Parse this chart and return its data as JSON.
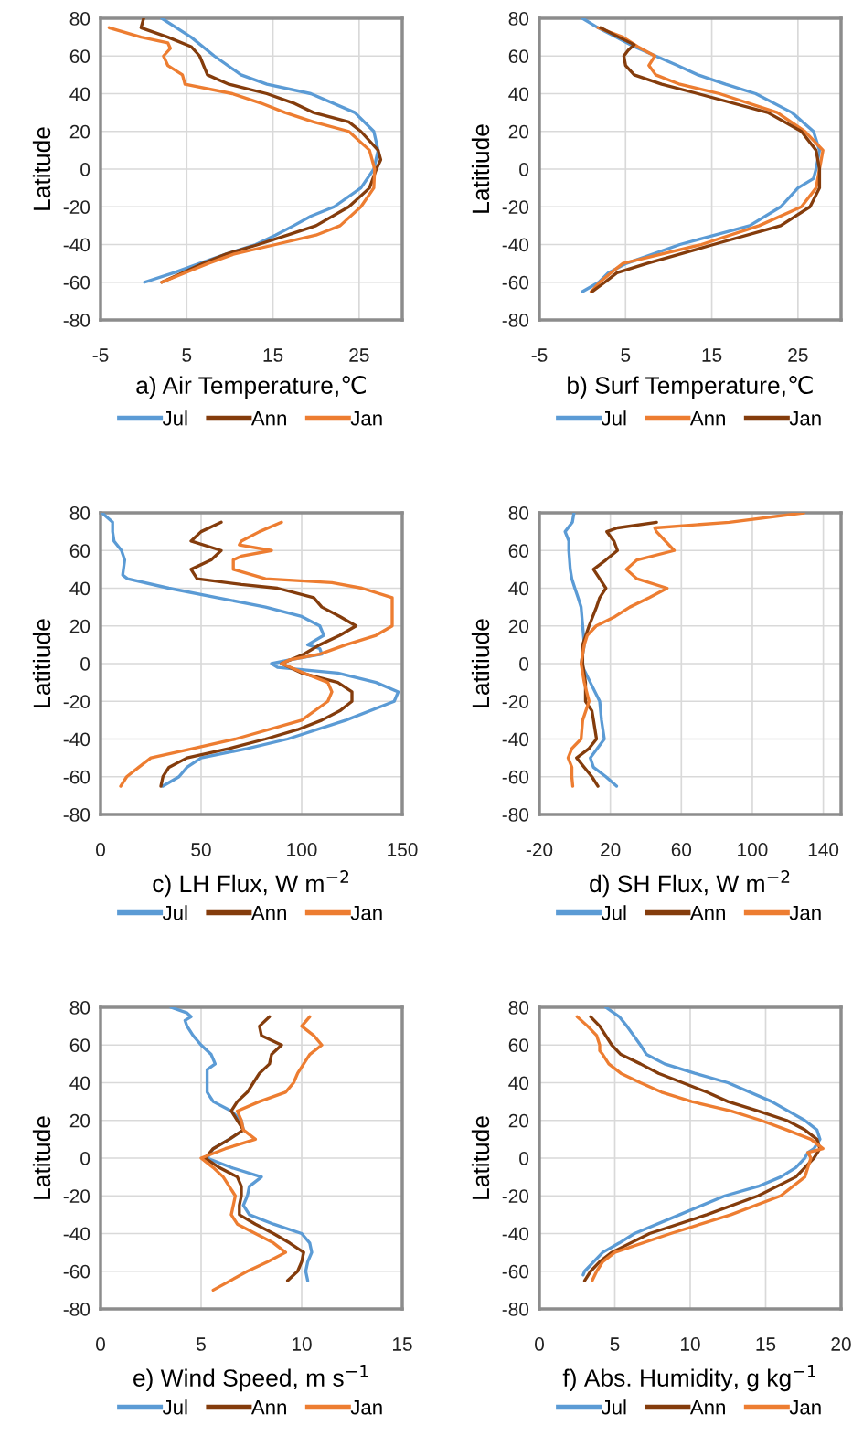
{
  "chart_data": [
    {
      "type": "line",
      "xlabel": "a) Air Temperature,℃",
      "ylabel": "Latitude",
      "xlim": [
        -5,
        30
      ],
      "xticks": [
        -5,
        5,
        15,
        25
      ],
      "ylim": [
        -80,
        80
      ],
      "yticks": [
        -80,
        -60,
        -40,
        -20,
        0,
        20,
        40,
        60,
        80
      ],
      "grid": true,
      "legend": "bottom",
      "series": [
        {
          "name": "Jul",
          "color": "#5b9bd5",
          "x": [
            2.1,
            5.5,
            8.2,
            11.3,
            14.3,
            19.4,
            24.5,
            26.7,
            27.2,
            26.7,
            25.2,
            22.1,
            19.4,
            17.4,
            15.3,
            13,
            9.6,
            6.5,
            3.5,
            0.1
          ],
          "values": [
            80,
            70,
            60,
            50,
            45,
            40,
            30,
            20,
            10,
            0,
            -10,
            -20,
            -25,
            -30,
            -35,
            -40,
            -45,
            -50,
            -55,
            -60
          ]
        },
        {
          "name": "Ann",
          "color": "#843c0c",
          "x": [
            0,
            -0.3,
            2.8,
            5.5,
            6.5,
            7.4,
            9.9,
            14.3,
            17.4,
            19.7,
            23.8,
            25.2,
            27.2,
            27.5,
            27,
            26.2,
            23.8,
            20,
            16.7,
            13.3,
            9.6,
            6.9,
            4.5,
            2.1
          ],
          "values": [
            80,
            75,
            70,
            65,
            60,
            50,
            45,
            40,
            35,
            30,
            25,
            20,
            10,
            5,
            0,
            -10,
            -20,
            -30,
            -35,
            -40,
            -45,
            -50,
            -55,
            -60
          ]
        },
        {
          "name": "Jan",
          "color": "#ed7d31",
          "x": [
            -4,
            -0.3,
            2.8,
            3.1,
            2.3,
            2.8,
            4.5,
            4.8,
            10.3,
            13.6,
            16.4,
            19.7,
            23.8,
            26.2,
            26.8,
            26.7,
            25.2,
            22.8,
            20,
            15.3,
            10.5,
            7.5,
            4.8,
            2.1
          ],
          "values": [
            75,
            70,
            67,
            64,
            60,
            55,
            50,
            45,
            40,
            35,
            30,
            25,
            20,
            10,
            0,
            -10,
            -20,
            -30,
            -35,
            -40,
            -45,
            -50,
            -55,
            -60
          ]
        }
      ]
    },
    {
      "type": "line",
      "xlabel": "b) Surf Temperature,℃",
      "ylabel": "Latitiude",
      "xlim": [
        -5,
        30
      ],
      "xticks": [
        -5,
        5,
        15,
        25
      ],
      "ylim": [
        -80,
        80
      ],
      "yticks": [
        -80,
        -60,
        -40,
        -20,
        0,
        20,
        40,
        60,
        80
      ],
      "grid": true,
      "legend": "bottom",
      "series": [
        {
          "name": "Jul",
          "color": "#5b9bd5",
          "x": [
            0,
            1.8,
            3.9,
            6,
            8.5,
            11,
            13.4,
            16.6,
            20.1,
            24.3,
            26.8,
            27.5,
            27.1,
            26.8,
            25,
            23,
            19.4,
            11.3,
            5.1,
            3,
            1.9,
            0
          ],
          "values": [
            80,
            75,
            70,
            65,
            60,
            55,
            50,
            45,
            40,
            30,
            20,
            10,
            0,
            -5,
            -10,
            -20,
            -30,
            -40,
            -50,
            -55,
            -60,
            -65
          ]
        },
        {
          "name": "Ann",
          "color": "#ed7d31",
          "x": [
            1.8,
            4.7,
            6.4,
            8.4,
            7.7,
            8.5,
            11.3,
            15.9,
            22.6,
            25.8,
            27.9,
            27.5,
            27.1,
            25.4,
            20.5,
            13.8,
            4.7,
            3.3,
            2,
            1
          ],
          "values": [
            75,
            70,
            65,
            60,
            55,
            50,
            45,
            40,
            30,
            20,
            10,
            0,
            -10,
            -20,
            -30,
            -40,
            -50,
            -55,
            -60,
            -65
          ]
        },
        {
          "name": "Jan",
          "color": "#843c0c",
          "x": [
            2.1,
            4.2,
            6,
            5.3,
            4.8,
            5,
            6,
            9.2,
            13.4,
            21.5,
            25.4,
            27.1,
            27.5,
            27.5,
            26.4,
            23,
            15.2,
            7.5,
            4,
            2.6,
            1.1
          ],
          "values": [
            75,
            70,
            66,
            63,
            60,
            55,
            50,
            45,
            40,
            30,
            20,
            10,
            0,
            -10,
            -20,
            -30,
            -40,
            -50,
            -55,
            -60,
            -65
          ]
        }
      ]
    },
    {
      "type": "line",
      "xlabel": "c) LH Flux, W m$^{−2}$",
      "ylabel": "Latitiude",
      "xlim": [
        0,
        150
      ],
      "xticks": [
        0,
        50,
        100,
        150
      ],
      "ylim": [
        -80,
        80
      ],
      "yticks": [
        -80,
        -60,
        -40,
        -20,
        0,
        20,
        40,
        60,
        80
      ],
      "grid": true,
      "legend": "bottom",
      "series": [
        {
          "name": "Jul",
          "color": "#5b9bd5",
          "x": [
            0.7,
            6,
            6,
            6.7,
            10.4,
            12,
            11,
            13.4,
            34,
            58,
            82,
            100,
            109,
            111,
            103,
            109,
            110,
            94,
            85,
            88,
            118,
            137,
            148,
            146,
            122,
            93,
            73,
            50,
            43,
            39,
            31
          ],
          "values": [
            80,
            75,
            70,
            65,
            60,
            55,
            47,
            45,
            40,
            35,
            30,
            25,
            20,
            15,
            10,
            8,
            5,
            2,
            0,
            -2,
            -5,
            -10,
            -15,
            -20,
            -30,
            -40,
            -45,
            -50,
            -55,
            -60,
            -65
          ]
        },
        {
          "name": "Ann",
          "color": "#843c0c",
          "x": [
            60,
            50,
            45,
            60,
            55,
            45,
            48,
            70,
            88,
            106,
            110,
            119,
            127,
            119,
            109,
            101,
            90,
            100,
            118,
            125,
            125,
            119,
            110,
            98,
            82,
            64,
            43,
            34,
            31,
            30
          ],
          "values": [
            75,
            70,
            65,
            60,
            55,
            50,
            45,
            42,
            40,
            35,
            30,
            25,
            20,
            15,
            10,
            5,
            0,
            -5,
            -10,
            -15,
            -20,
            -25,
            -30,
            -35,
            -40,
            -45,
            -50,
            -55,
            -60,
            -65
          ]
        },
        {
          "name": "Jan",
          "color": "#ed7d31",
          "x": [
            90,
            79,
            70,
            69,
            85,
            70,
            66,
            66,
            82,
            115,
            130,
            145,
            145,
            145,
            145,
            137,
            122,
            109,
            94,
            90,
            101,
            113,
            115,
            113,
            100,
            67,
            46,
            25,
            19,
            13,
            10
          ],
          "values": [
            75,
            70,
            65,
            63,
            60,
            57,
            55,
            50,
            45,
            43,
            40,
            35,
            30,
            25,
            20,
            15,
            10,
            5,
            2,
            0,
            -5,
            -10,
            -15,
            -20,
            -30,
            -40,
            -45,
            -50,
            -55,
            -60,
            -65
          ]
        }
      ]
    },
    {
      "type": "line",
      "xlabel": "d) SH Flux, W m$^{−2}$",
      "ylabel": "Latitiude",
      "xlim": [
        -20,
        150
      ],
      "xticks": [
        -20,
        20,
        60,
        100,
        140
      ],
      "ylim": [
        -80,
        80
      ],
      "yticks": [
        -80,
        -60,
        -40,
        -20,
        0,
        20,
        40,
        60,
        80
      ],
      "grid": true,
      "legend": "bottom",
      "series": [
        {
          "name": "Jul",
          "color": "#5b9bd5",
          "x": [
            -0.5,
            -1.4,
            -5.5,
            -3.4,
            -3.4,
            -2.6,
            -1.7,
            0,
            1.8,
            3.5,
            4.4,
            5.3,
            3.5,
            8.7,
            14,
            15,
            16.6,
            8.7,
            10.5,
            17.5,
            23.5
          ],
          "values": [
            80,
            75,
            70,
            65,
            60,
            50,
            45,
            40,
            35,
            30,
            20,
            10,
            0,
            -10,
            -20,
            -30,
            -40,
            -50,
            -55,
            -60,
            -65
          ]
        },
        {
          "name": "Ann",
          "color": "#843c0c",
          "x": [
            46,
            24,
            18,
            22,
            24,
            17.5,
            10.5,
            14,
            17.5,
            14,
            12.2,
            8,
            4.4,
            4.4,
            6,
            6,
            9.6,
            10.5,
            12.2,
            8,
            1,
            5.3,
            9.6,
            13
          ],
          "values": [
            75,
            72,
            70,
            65,
            60,
            55,
            50,
            45,
            40,
            35,
            30,
            20,
            10,
            0,
            -10,
            -20,
            -25,
            -30,
            -40,
            -45,
            -50,
            -55,
            -60,
            -65
          ]
        },
        {
          "name": "Jan",
          "color": "#ed7d31",
          "x": [
            129,
            87,
            45,
            46,
            56,
            35,
            29,
            35,
            52,
            42,
            31,
            22.7,
            12,
            7,
            5.3,
            3.5,
            5.3,
            8,
            4.4,
            3.5,
            -1.7,
            -3.8,
            -1.7,
            -1.7,
            -1.2
          ],
          "values": [
            80,
            75,
            72,
            70,
            60,
            55,
            50,
            45,
            40,
            35,
            30,
            25,
            20,
            15,
            10,
            0,
            -10,
            -20,
            -30,
            -40,
            -45,
            -50,
            -55,
            -60,
            -65
          ]
        }
      ]
    },
    {
      "type": "line",
      "xlabel": "e) Wind Speed, m s$^{−1}$",
      "ylabel": "Latitude",
      "xlim": [
        0,
        15
      ],
      "xticks": [
        0,
        5,
        10,
        15
      ],
      "ylim": [
        -80,
        80
      ],
      "yticks": [
        -80,
        -60,
        -40,
        -20,
        0,
        20,
        40,
        60,
        80
      ],
      "grid": true,
      "legend": "bottom",
      "series": [
        {
          "name": "Jul",
          "color": "#5b9bd5",
          "x": [
            3.5,
            4.3,
            4.5,
            4.2,
            4.3,
            4.6,
            5,
            5.5,
            5.7,
            5.3,
            5.3,
            5.3,
            5.3,
            5.6,
            6.5,
            7,
            7.1,
            6.4,
            5.6,
            5.3,
            6.5,
            8,
            7.4,
            7.3,
            7.1,
            7.4,
            8.6,
            10,
            10.4,
            10.5,
            10.3,
            10.2,
            10.3
          ],
          "values": [
            80,
            77,
            75,
            73,
            70,
            65,
            60,
            55,
            50,
            47,
            45,
            40,
            35,
            30,
            25,
            20,
            15,
            10,
            5,
            0,
            -5,
            -10,
            -15,
            -20,
            -25,
            -30,
            -35,
            -40,
            -45,
            -50,
            -55,
            -60,
            -65
          ]
        },
        {
          "name": "Ann",
          "color": "#843c0c",
          "x": [
            8.4,
            7.9,
            8,
            9,
            8.5,
            8.4,
            7.9,
            7.6,
            7.3,
            6.8,
            6.5,
            6.8,
            7.1,
            6.4,
            5.6,
            5.2,
            5.9,
            6.8,
            7,
            7,
            6.9,
            6.9,
            7.7,
            8.6,
            9.4,
            10.1,
            10,
            9.8,
            9.3
          ],
          "values": [
            75,
            70,
            65,
            60,
            55,
            50,
            45,
            40,
            35,
            30,
            25,
            20,
            15,
            10,
            5,
            0,
            -5,
            -10,
            -15,
            -20,
            -25,
            -30,
            -35,
            -40,
            -45,
            -50,
            -55,
            -60,
            -65
          ]
        },
        {
          "name": "Jan",
          "color": "#ed7d31",
          "x": [
            10.4,
            10,
            10.6,
            11,
            10.4,
            10.1,
            9.8,
            9.6,
            9.2,
            7.9,
            6.8,
            7,
            7.1,
            7.7,
            6.2,
            5,
            5.6,
            6.1,
            6.7,
            6.5,
            6.8,
            7.7,
            8.6,
            9.2,
            8.3,
            7.3,
            5.6
          ],
          "values": [
            75,
            70,
            65,
            60,
            55,
            50,
            45,
            40,
            35,
            30,
            25,
            20,
            15,
            10,
            5,
            0,
            -5,
            -10,
            -20,
            -30,
            -35,
            -40,
            -45,
            -50,
            -55,
            -60,
            -70
          ]
        }
      ]
    },
    {
      "type": "line",
      "xlabel": "f) Abs. Humidity, g kg$^{−1}$",
      "ylabel": "Latitude",
      "xlim": [
        0,
        20
      ],
      "xticks": [
        0,
        5,
        10,
        15,
        20
      ],
      "ylim": [
        -80,
        80
      ],
      "yticks": [
        -80,
        -60,
        -40,
        -20,
        0,
        20,
        40,
        60,
        80
      ],
      "grid": true,
      "legend": "bottom",
      "series": [
        {
          "name": "Jul",
          "color": "#5b9bd5",
          "x": [
            4.4,
            5.3,
            5.8,
            6.7,
            7.1,
            8.3,
            10.3,
            12.5,
            15.4,
            17.6,
            18.4,
            18.6,
            18.2,
            17.8,
            17.6,
            17,
            16,
            14.5,
            12.3,
            9.3,
            6.3,
            5.3,
            4.2,
            3.6,
            3,
            2.9
          ],
          "values": [
            80,
            75,
            70,
            60,
            55,
            50,
            45,
            40,
            30,
            20,
            15,
            10,
            5,
            3,
            0,
            -5,
            -10,
            -15,
            -20,
            -30,
            -40,
            -45,
            -50,
            -55,
            -60,
            -62
          ]
        },
        {
          "name": "Ann",
          "color": "#843c0c",
          "x": [
            3.4,
            4,
            4.8,
            5.4,
            6.7,
            7.9,
            9.5,
            11.1,
            12.5,
            14.5,
            16.4,
            17.6,
            18.4,
            18.6,
            18.2,
            17.6,
            17,
            14.5,
            11.1,
            7.3,
            4.8,
            4,
            3.4,
            3
          ],
          "values": [
            75,
            70,
            60,
            55,
            50,
            45,
            40,
            35,
            30,
            25,
            20,
            15,
            10,
            5,
            0,
            -5,
            -10,
            -20,
            -30,
            -40,
            -50,
            -55,
            -60,
            -65
          ]
        },
        {
          "name": "Jan",
          "color": "#ed7d31",
          "x": [
            2.5,
            3.2,
            3.8,
            4,
            4,
            4.2,
            4.6,
            5.4,
            6.7,
            8.1,
            10.1,
            12.7,
            14.7,
            16.4,
            18,
            18.8,
            17.8,
            18,
            17.8,
            17.6,
            16,
            12.7,
            8.7,
            5,
            4.2,
            3.8,
            3.5
          ],
          "values": [
            75,
            70,
            65,
            60,
            57,
            55,
            50,
            45,
            40,
            35,
            30,
            25,
            20,
            15,
            10,
            5,
            3,
            0,
            -5,
            -10,
            -20,
            -30,
            -40,
            -50,
            -55,
            -60,
            -65
          ]
        }
      ]
    }
  ]
}
